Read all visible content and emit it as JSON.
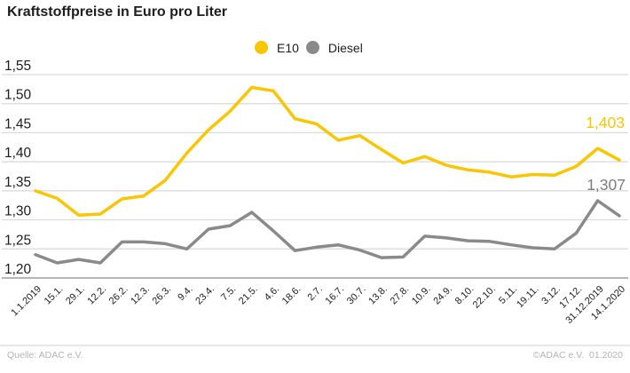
{
  "title": "Kraftstoffpreise in Euro pro Liter",
  "legend": {
    "items": [
      {
        "label": "E10",
        "color": "#FAC502"
      },
      {
        "label": "Diesel",
        "color": "#8A8A8A"
      }
    ]
  },
  "chart_data": {
    "type": "line",
    "title": "Kraftstoffpreise in Euro pro Liter",
    "unit": "Euro pro Liter",
    "categories": [
      "1.1.2019",
      "15.1.",
      "29.1.",
      "12.2.",
      "26.2.",
      "12.3.",
      "26.3.",
      "9.4.",
      "23.4.",
      "7.5.",
      "21.5.",
      "4.6.",
      "18.6.",
      "2.7.",
      "16.7.",
      "30.7.",
      "13.8.",
      "27.8.",
      "10.9.",
      "24.9.",
      "8.10.",
      "22.10.",
      "5.11.",
      "19.11.",
      "3.12.",
      "17.12.",
      "31.12.2019",
      "14.1.2020"
    ],
    "series": [
      {
        "name": "E10",
        "color": "#FAC502",
        "end_label": "1,403",
        "values": [
          1.35,
          1.337,
          1.308,
          1.31,
          1.336,
          1.341,
          1.368,
          1.415,
          1.455,
          1.487,
          1.528,
          1.522,
          1.474,
          1.465,
          1.437,
          1.445,
          1.421,
          1.398,
          1.409,
          1.394,
          1.386,
          1.382,
          1.374,
          1.378,
          1.377,
          1.392,
          1.423,
          1.403
        ]
      },
      {
        "name": "Diesel",
        "color": "#8A8A8A",
        "end_label": "1,307",
        "values": [
          1.24,
          1.226,
          1.232,
          1.226,
          1.262,
          1.262,
          1.259,
          1.25,
          1.284,
          1.29,
          1.313,
          1.281,
          1.247,
          1.253,
          1.257,
          1.248,
          1.235,
          1.236,
          1.272,
          1.269,
          1.264,
          1.263,
          1.257,
          1.252,
          1.25,
          1.277,
          1.333,
          1.307
        ]
      }
    ],
    "y_ticks": [
      "1,55",
      "1,50",
      "1,45",
      "1,40",
      "1,35",
      "1,30",
      "1,25",
      "1,20"
    ],
    "ylim": [
      1.2,
      1.55
    ],
    "grid": "horizontal",
    "legend_position": "top-center",
    "colors": {
      "gridline": "#d9d9d9",
      "axis_line": "#9e9e9e",
      "tick_label": "#1d1d1b",
      "e10_label": "#FAC502",
      "diesel_label": "#7d7d7d"
    }
  },
  "footer": {
    "source": "Quelle: ADAC e.V.",
    "copyright": "©ADAC e.V.  01.2020"
  }
}
